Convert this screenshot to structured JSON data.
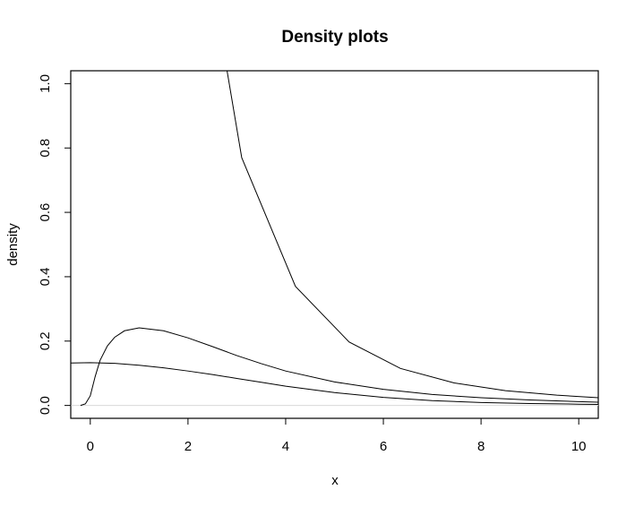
{
  "chart_data": {
    "type": "line",
    "title": "Density plots",
    "xlabel": "x",
    "ylabel": "density",
    "xlim": [
      -0.4,
      10.4
    ],
    "ylim": [
      -0.04,
      1.04
    ],
    "x_ticks": [
      0,
      2,
      4,
      6,
      8,
      10
    ],
    "y_ticks": [
      0.0,
      0.2,
      0.4,
      0.6,
      0.8,
      1.0
    ],
    "x_tick_labels": [
      "0",
      "2",
      "4",
      "6",
      "8",
      "10"
    ],
    "y_tick_labels": [
      "0.0",
      "0.2",
      "0.4",
      "0.6",
      "0.8",
      "1.0"
    ],
    "zero_line": true,
    "colors": {
      "line": "#000000",
      "zero_line": "#d9d9d9"
    },
    "series": [
      {
        "x": [
          2.8,
          3.1,
          4.2,
          5.3,
          6.35,
          7.45,
          8.5,
          9.55,
          10.4
        ],
        "y": [
          1.04,
          0.77,
          0.37,
          0.197,
          0.115,
          0.07,
          0.046,
          0.032,
          0.024
        ]
      },
      {
        "x": [
          -0.2,
          -0.1,
          0.0,
          0.1,
          0.2,
          0.35,
          0.5,
          0.7,
          1.0,
          1.5,
          2.0,
          2.5,
          3.0,
          3.5,
          4.0,
          5.0,
          6.0,
          7.0,
          8.0,
          9.0,
          10.0,
          10.4
        ],
        "y": [
          0.0,
          0.005,
          0.03,
          0.09,
          0.14,
          0.185,
          0.212,
          0.232,
          0.241,
          0.232,
          0.21,
          0.183,
          0.155,
          0.13,
          0.107,
          0.073,
          0.05,
          0.034,
          0.024,
          0.017,
          0.012,
          0.01
        ],
        "x_min": -0.2
      },
      {
        "x": [
          -0.4,
          0.0,
          0.5,
          1.0,
          1.5,
          2.0,
          2.5,
          3.0,
          3.5,
          4.0,
          5.0,
          6.0,
          7.0,
          8.0,
          9.0,
          10.0,
          10.4
        ],
        "y": [
          0.132,
          0.133,
          0.131,
          0.125,
          0.117,
          0.107,
          0.096,
          0.084,
          0.072,
          0.06,
          0.04,
          0.025,
          0.015,
          0.009,
          0.006,
          0.004,
          0.003
        ]
      }
    ]
  }
}
